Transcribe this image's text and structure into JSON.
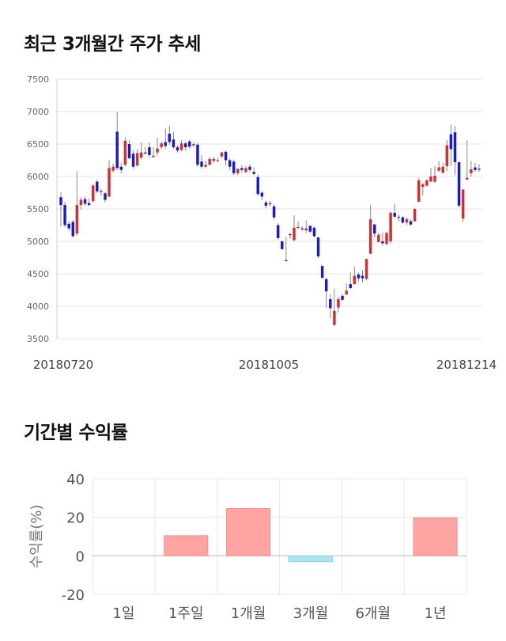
{
  "sections": {
    "price_title": "최근 3개월간 주가 추세",
    "return_title": "기간별 수익률"
  },
  "colors": {
    "up": "#d32f2f",
    "down": "#1a1acc",
    "return_positive": "#ffa3a3",
    "return_negative": "#a8e6f0"
  },
  "chart_data": [
    {
      "type": "candlestick",
      "title": "최근 3개월간 주가 추세",
      "ylim": [
        3500,
        7500
      ],
      "y_ticks": [
        7500,
        7000,
        6500,
        6000,
        5500,
        5000,
        4500,
        4000,
        3500
      ],
      "x_tick_labels": [
        "20180720",
        "20181005",
        "20181214"
      ],
      "grid": true,
      "candles": [
        [
          5680,
          5560,
          5760,
          5230
        ],
        [
          5560,
          5250,
          5610,
          5220
        ],
        [
          5270,
          5200,
          5310,
          5160
        ],
        [
          5300,
          5080,
          5330,
          5060
        ],
        [
          5120,
          5560,
          6080,
          5090
        ],
        [
          5560,
          5640,
          5680,
          5490
        ],
        [
          5650,
          5580,
          5690,
          5540
        ],
        [
          5590,
          5560,
          5660,
          5540
        ],
        [
          5620,
          5860,
          5880,
          5590
        ],
        [
          5920,
          5770,
          5950,
          5740
        ],
        [
          5760,
          5780,
          5810,
          5700
        ],
        [
          5740,
          5640,
          5760,
          5600
        ],
        [
          5690,
          6130,
          6250,
          5680
        ],
        [
          6090,
          6150,
          6200,
          6060
        ],
        [
          6690,
          6130,
          7000,
          6100
        ],
        [
          6150,
          6100,
          6210,
          6050
        ],
        [
          6180,
          6550,
          6600,
          6150
        ],
        [
          6500,
          6280,
          6560,
          6270
        ],
        [
          6350,
          6150,
          6400,
          6120
        ],
        [
          6170,
          6360,
          6420,
          6150
        ],
        [
          6290,
          6370,
          6530,
          6260
        ],
        [
          6370,
          6360,
          6450,
          6330
        ],
        [
          6450,
          6330,
          6530,
          6290
        ],
        [
          6300,
          6320,
          6450,
          6280
        ],
        [
          6370,
          6430,
          6600,
          6320
        ],
        [
          6450,
          6510,
          6540,
          6420
        ],
        [
          6530,
          6470,
          6740,
          6430
        ],
        [
          6660,
          6530,
          6780,
          6490
        ],
        [
          6570,
          6450,
          6690,
          6430
        ],
        [
          6450,
          6400,
          6480,
          6370
        ],
        [
          6410,
          6510,
          6560,
          6390
        ],
        [
          6510,
          6450,
          6530,
          6400
        ],
        [
          6540,
          6460,
          6570,
          6430
        ],
        [
          6480,
          6500,
          6530,
          6450
        ],
        [
          6490,
          6180,
          6520,
          6150
        ],
        [
          6230,
          6150,
          6330,
          6120
        ],
        [
          6150,
          6180,
          6240,
          6130
        ],
        [
          6180,
          6270,
          6300,
          6170
        ],
        [
          6240,
          6270,
          6300,
          6210
        ],
        [
          6240,
          6250,
          6290,
          6220
        ],
        [
          6310,
          6370,
          6380,
          6280
        ],
        [
          6380,
          6250,
          6400,
          6170
        ],
        [
          6250,
          6150,
          6280,
          6100
        ],
        [
          6230,
          6050,
          6260,
          6020
        ],
        [
          6050,
          6120,
          6120,
          6020
        ],
        [
          6130,
          6100,
          6180,
          6060
        ],
        [
          6070,
          6130,
          6160,
          6050
        ],
        [
          6150,
          6100,
          6190,
          6070
        ],
        [
          6070,
          6040,
          6140,
          6020
        ],
        [
          5990,
          5730,
          6030,
          5700
        ],
        [
          5750,
          5690,
          5770,
          5630
        ],
        [
          5600,
          5550,
          5630,
          5510
        ],
        [
          5570,
          5590,
          5620,
          5540
        ],
        [
          5540,
          5370,
          5570,
          5340
        ],
        [
          5250,
          5050,
          5280,
          5030
        ],
        [
          5000,
          4880,
          5010,
          4870
        ],
        [
          4710,
          4700,
          5070,
          4690
        ],
        [
          5110,
          5100,
          5130,
          5040
        ],
        [
          5020,
          5210,
          5400,
          5000
        ],
        [
          5210,
          5220,
          5310,
          5200
        ],
        [
          5200,
          5190,
          5230,
          5160
        ],
        [
          5170,
          5200,
          5320,
          5130
        ],
        [
          5240,
          5150,
          5240,
          5130
        ],
        [
          5210,
          5080,
          5230,
          5060
        ],
        [
          5060,
          4770,
          5070,
          4740
        ],
        [
          4620,
          4440,
          4640,
          4420
        ],
        [
          4420,
          4230,
          4430,
          3970
        ],
        [
          4110,
          3970,
          4190,
          3820
        ],
        [
          3710,
          3930,
          4270,
          3700
        ],
        [
          3980,
          4110,
          4150,
          3900
        ],
        [
          4160,
          4100,
          4190,
          4080
        ],
        [
          4180,
          4240,
          4350,
          4180
        ],
        [
          4340,
          4280,
          4520,
          4270
        ],
        [
          4340,
          4470,
          4610,
          4340
        ],
        [
          4490,
          4430,
          4520,
          4380
        ],
        [
          4470,
          4430,
          4560,
          4370
        ],
        [
          4420,
          4730,
          4720,
          4400
        ],
        [
          4810,
          5340,
          5560,
          4800
        ],
        [
          5260,
          5120,
          5270,
          5060
        ],
        [
          4990,
          5100,
          5130,
          4980
        ],
        [
          5000,
          4970,
          5140,
          4940
        ],
        [
          4960,
          5130,
          5150,
          4940
        ],
        [
          5000,
          5440,
          5460,
          4970
        ],
        [
          5440,
          5380,
          5580,
          5360
        ],
        [
          5360,
          5380,
          5410,
          5300
        ],
        [
          5370,
          5290,
          5390,
          5270
        ],
        [
          5290,
          5340,
          5370,
          5250
        ],
        [
          5310,
          5260,
          5340,
          5240
        ],
        [
          5310,
          5500,
          5520,
          5300
        ],
        [
          5610,
          5940,
          5980,
          5610
        ],
        [
          5840,
          5880,
          5900,
          5710
        ],
        [
          5860,
          5940,
          5960,
          5840
        ],
        [
          5920,
          6000,
          6130,
          5920
        ],
        [
          5920,
          6010,
          6160,
          5900
        ],
        [
          6090,
          6140,
          6240,
          6070
        ],
        [
          6060,
          6150,
          6210,
          6040
        ],
        [
          6160,
          6480,
          6560,
          6080
        ],
        [
          6650,
          6420,
          6800,
          6160
        ],
        [
          6680,
          6220,
          6780,
          6020
        ],
        [
          6220,
          5550,
          6220,
          5520
        ],
        [
          5350,
          5800,
          5800,
          5300
        ],
        [
          5950,
          5980,
          6560,
          5960
        ],
        [
          6050,
          6110,
          6240,
          6000
        ],
        [
          6140,
          6100,
          6210,
          6070
        ],
        [
          6120,
          6110,
          6190,
          6070
        ]
      ]
    },
    {
      "type": "bar",
      "title": "기간별 수익률",
      "ylabel": "수익률(%)",
      "categories": [
        "1일",
        "1주일",
        "1개월",
        "3개월",
        "6개월",
        "1년"
      ],
      "values": [
        0,
        10.5,
        24.6,
        -3.1,
        0,
        19.7
      ],
      "ylim": [
        -20,
        40
      ],
      "y_ticks": [
        40,
        20,
        0,
        -20
      ],
      "grid": true
    }
  ]
}
